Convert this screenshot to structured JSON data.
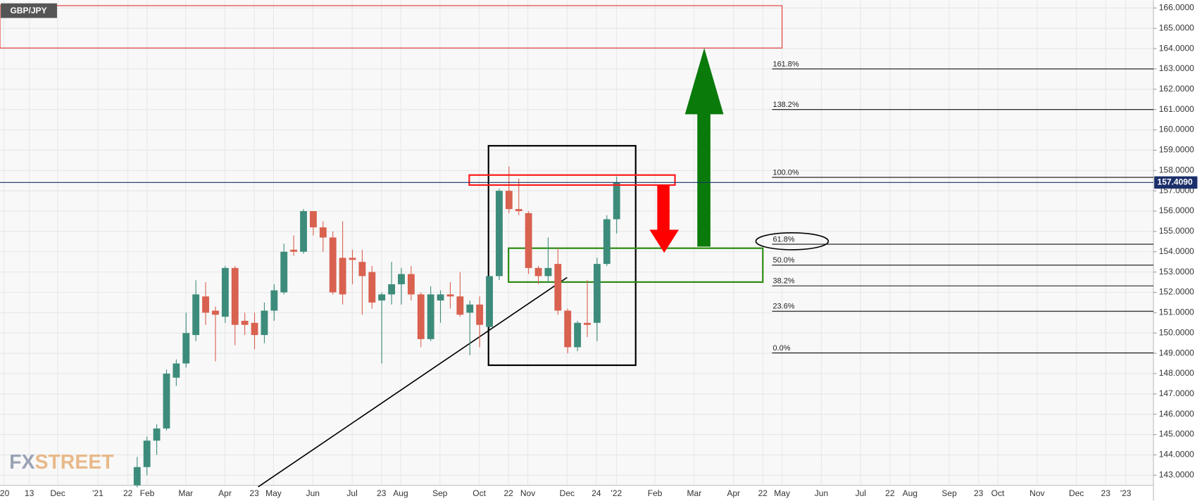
{
  "chart_data": {
    "type": "candlestick",
    "title": "GBP/JPY",
    "watermark": [
      "FX",
      "STREET"
    ],
    "up_color": "#3d8c7b",
    "down_color": "#d9614f",
    "open": [
      142.5,
      143.4,
      144.7,
      145.3,
      147.8,
      148.5,
      149.9,
      151.8,
      151.1,
      150.8,
      153.2,
      150.6,
      150.5,
      149.9,
      151.1,
      152.0,
      154.1,
      154.0,
      156.0,
      155.2,
      154.7,
      153.7,
      153.7,
      153.5,
      153.0,
      151.6,
      151.9,
      152.4,
      152.9,
      151.9,
      149.7,
      151.6,
      151.9,
      151.8,
      151.0,
      151.4,
      150.3,
      152.8,
      157.0,
      156.1,
      155.9,
      153.2,
      152.8,
      153.4,
      151.1,
      149.3,
      150.5,
      150.5,
      153.4,
      155.6
    ],
    "high": [
      143.9,
      144.9,
      145.5,
      148.2,
      148.7,
      151.0,
      152.6,
      152.5,
      151.3,
      153.3,
      153.3,
      151.0,
      151.0,
      151.5,
      152.4,
      154.4,
      154.8,
      156.1,
      156.0,
      155.5,
      155.0,
      155.5,
      154.1,
      154.1,
      153.3,
      152.0,
      153.5,
      153.2,
      153.3,
      152.0,
      152.3,
      152.1,
      152.5,
      153.0,
      151.6,
      151.8,
      152.8,
      157.1,
      158.2,
      157.6,
      156.0,
      153.3,
      154.7,
      154.2,
      151.2,
      150.6,
      152.6,
      153.7,
      155.8,
      157.7
    ],
    "low": [
      142.4,
      143.0,
      144.0,
      145.2,
      147.4,
      148.3,
      149.6,
      150.4,
      148.6,
      150.5,
      149.4,
      149.9,
      149.2,
      149.5,
      150.6,
      151.9,
      153.8,
      153.9,
      154.8,
      154.0,
      151.9,
      151.4,
      152.4,
      150.9,
      151.2,
      148.5,
      151.4,
      151.4,
      151.6,
      149.3,
      149.6,
      150.5,
      151.2,
      150.8,
      148.9,
      149.3,
      150.2,
      152.6,
      155.9,
      155.8,
      152.9,
      152.4,
      152.5,
      150.9,
      149.0,
      149.1,
      149.8,
      149.6,
      153.3,
      154.9
    ],
    "close": [
      143.4,
      144.7,
      145.3,
      148.0,
      148.5,
      150.0,
      151.9,
      151.0,
      150.9,
      153.2,
      150.4,
      150.4,
      149.9,
      151.1,
      152.1,
      154.0,
      154.0,
      156.0,
      155.2,
      154.7,
      152.0,
      151.9,
      153.6,
      152.8,
      151.5,
      151.9,
      152.4,
      152.9,
      151.9,
      149.7,
      151.9,
      151.9,
      151.8,
      150.9,
      151.4,
      150.4,
      152.8,
      157.0,
      156.1,
      156.0,
      153.2,
      152.8,
      153.2,
      151.1,
      149.3,
      150.5,
      150.4,
      153.4,
      155.6,
      157.409
    ],
    "last_price": {
      "value": 157.409,
      "label": "157.4090"
    },
    "fib_levels": [
      {
        "label": "161.8%",
        "price": 163.0
      },
      {
        "label": "138.2%",
        "price": 161.0
      },
      {
        "label": "100.0%",
        "price": 157.66
      },
      {
        "label": "61.8%",
        "price": 154.37
      },
      {
        "label": "50.0%",
        "price": 153.34
      },
      {
        "label": "38.2%",
        "price": 152.32
      },
      {
        "label": "23.6%",
        "price": 151.07
      },
      {
        "label": "0.0%",
        "price": 149.02
      }
    ],
    "xlabels": [
      "'20",
      "13",
      "Dec",
      "'21",
      "22",
      "Feb",
      "Mar",
      "Apr",
      "23",
      "May",
      "Jun",
      "Jul",
      "23",
      "Aug",
      "Sep",
      "Oct",
      "22",
      "Nov",
      "Dec",
      "24",
      "'22",
      "Feb",
      "Mar",
      "Apr",
      "22",
      "May",
      "Jun",
      "Jul",
      "22",
      "Aug",
      "Sep",
      "23",
      "Oct",
      "Nov",
      "Dec",
      "23",
      "'23"
    ],
    "ylim": [
      142.5,
      166.38
    ],
    "yticks": [
      {
        "value": 143,
        "label": "143.0000"
      },
      {
        "value": 144,
        "label": "144.0000"
      },
      {
        "value": 145,
        "label": "145.0000"
      },
      {
        "value": 146,
        "label": "146.0000"
      },
      {
        "value": 147,
        "label": "147.0000"
      },
      {
        "value": 148,
        "label": "148.0000"
      },
      {
        "value": 149,
        "label": "149.0000"
      },
      {
        "value": 150,
        "label": "150.0000"
      },
      {
        "value": 151,
        "label": "151.0000"
      },
      {
        "value": 152,
        "label": "152.0000"
      },
      {
        "value": 153,
        "label": "153.0000"
      },
      {
        "value": 154,
        "label": "154.0000"
      },
      {
        "value": 155,
        "label": "155.0000"
      },
      {
        "value": 156,
        "label": "156.0000"
      },
      {
        "value": 157,
        "label": "157.0000"
      },
      {
        "value": 158,
        "label": "158.0000"
      },
      {
        "value": 159,
        "label": "159.0000"
      },
      {
        "value": 160,
        "label": "160.0000"
      },
      {
        "value": 161,
        "label": "161.0000"
      },
      {
        "value": 162,
        "label": "162.0000"
      },
      {
        "value": 163,
        "label": "163.0000"
      },
      {
        "value": 164,
        "label": "164.0000"
      },
      {
        "value": 165,
        "label": "165.0000"
      },
      {
        "value": 166,
        "label": "166.0000"
      }
    ],
    "grid": true
  }
}
